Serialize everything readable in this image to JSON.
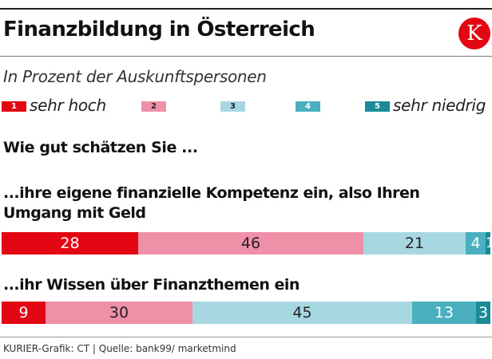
{
  "header": {
    "title": "Finanzbildung in Österreich",
    "logo_letter": "K",
    "subtitle": "In Prozent der Auskunftspersonen"
  },
  "legend": [
    {
      "code": "1",
      "label": "sehr hoch",
      "color": "#e30613",
      "text_color": "#ffffff"
    },
    {
      "code": "2",
      "label": "",
      "color": "#f08fa8",
      "text_color": "#222222"
    },
    {
      "code": "3",
      "label": "",
      "color": "#a7d8e1",
      "text_color": "#222222"
    },
    {
      "code": "4",
      "label": "",
      "color": "#4ab0c0",
      "text_color": "#ffffff"
    },
    {
      "code": "5",
      "label": "sehr niedrig",
      "color": "#1a8a99",
      "text_color": "#ffffff"
    }
  ],
  "question": "Wie gut schätzen Sie ...",
  "chart_data": {
    "type": "bar",
    "orientation": "horizontal",
    "stacked": true,
    "categories": [
      "...ihre eigene finanzielle Kompetenz ein, also Ihren Umgang mit Geld",
      "...ihr Wissen über Finanzthemen ein"
    ],
    "label_lines": [
      [
        "...ihre eigene finanzielle Kompetenz ein, also Ihren",
        "Umgang mit Geld"
      ],
      [
        "...ihr Wissen über Finanzthemen ein"
      ]
    ],
    "series": [
      {
        "name": "1",
        "color": "#e30613",
        "values": [
          28,
          9
        ]
      },
      {
        "name": "2",
        "color": "#f08fa8",
        "values": [
          46,
          30
        ]
      },
      {
        "name": "3",
        "color": "#a7d8e1",
        "values": [
          21,
          45
        ]
      },
      {
        "name": "4",
        "color": "#4ab0c0",
        "values": [
          4,
          13
        ]
      },
      {
        "name": "5",
        "color": "#1a8a99",
        "values": [
          1,
          3
        ]
      }
    ],
    "label_colors": [
      "#ffffff",
      "#222222",
      "#222222",
      "#ffffff",
      "#ffffff"
    ],
    "xlim": [
      0,
      100
    ]
  },
  "footer": {
    "source": "KURIER-Grafik: CT | Quelle: bank99/ marketmind"
  }
}
